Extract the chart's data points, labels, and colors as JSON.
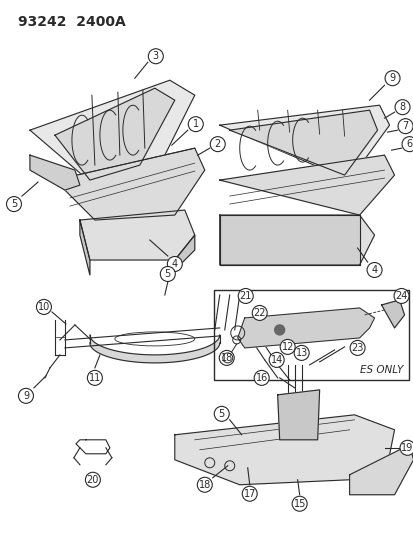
{
  "title": "93242  2400A",
  "bg_color": "#ffffff",
  "line_color": "#2a2a2a",
  "lw": 0.8,
  "fig_w": 4.14,
  "fig_h": 5.33,
  "dpi": 100
}
